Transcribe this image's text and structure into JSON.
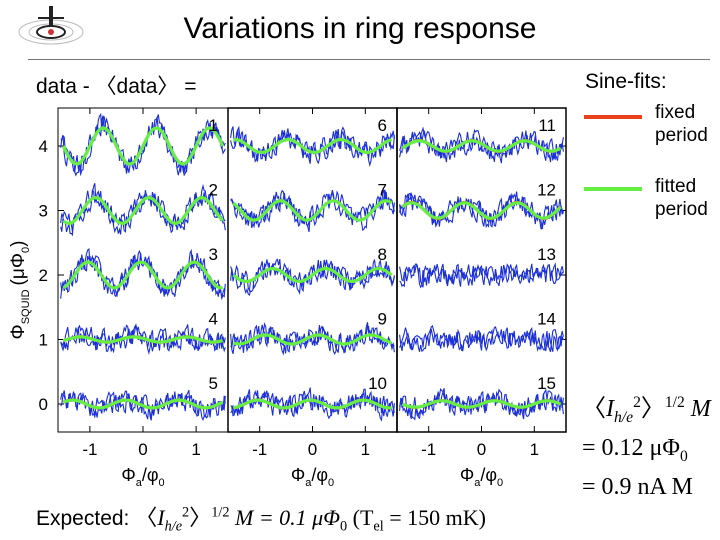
{
  "title": "Variations in ring response",
  "lhs_label": "data - 〈data〉 =",
  "legend": {
    "heading": "Sine-fits:",
    "items": [
      {
        "label_1": "fixed",
        "label_2": "period",
        "color": "#e8411b"
      },
      {
        "label_1": "fitted",
        "label_2": "period",
        "color": "#66ee44"
      }
    ]
  },
  "expected": {
    "prefix": "Expected: ",
    "bracket_l": "〈",
    "I": "I",
    "sub": "h/e",
    "sup2": "2",
    "bracket_r": "〉",
    "sup_half": "1/2",
    "mid": " M = 0.1 μΦ",
    "zero": "0",
    "temp_open": "   (T",
    "temp_sub": "el",
    "temp_close": " = 150 mK)"
  },
  "result": {
    "bracket_l": "〈",
    "I": "I",
    "sub": "h/e",
    "sup2": "2",
    "bracket_r": "〉",
    "sup_half": "1/2",
    "M": " M",
    "line2_prefix": "= 0.12 μΦ",
    "line2_sub": "0",
    "line3": "= 0.9 nA M"
  },
  "colors": {
    "data": "#1a2fd6",
    "fixed": "#e8411b",
    "fitted": "#66ee44"
  },
  "chart_data": {
    "type": "line",
    "panels": 3,
    "ylabel": "Φ_SQUID (μΦ0)",
    "ylabel_main": "Φ",
    "ylabel_sub": "SQUID",
    "ylabel_unit": "(μΦ",
    "ylabel_unit_sub": "0",
    "ylabel_close": ")",
    "xlabel_main": "Φ",
    "xlabel_sub": "a",
    "xlabel_slash": "/φ",
    "xlabel_sub2": "0",
    "xlim": [
      -1.6,
      1.6
    ],
    "ylim": [
      -0.4,
      4.4
    ],
    "xticks": [
      -1,
      0,
      1
    ],
    "xtick_labels": [
      "-1",
      "0",
      "1"
    ],
    "yticks": [
      0,
      1,
      2,
      3,
      4
    ],
    "ytick_labels": [
      "0",
      "1",
      "2",
      "3",
      "4"
    ],
    "curves": [
      {
        "id": "1",
        "panel": 0,
        "offset": 4,
        "amplitude": 0.28,
        "has_fixed_fit": false
      },
      {
        "id": "2",
        "panel": 0,
        "offset": 3,
        "amplitude": 0.2,
        "has_fixed_fit": false
      },
      {
        "id": "3",
        "panel": 0,
        "offset": 2,
        "amplitude": 0.2,
        "has_fixed_fit": false
      },
      {
        "id": "4",
        "panel": 0,
        "offset": 1,
        "amplitude": 0.04,
        "has_fixed_fit": true
      },
      {
        "id": "5",
        "panel": 0,
        "offset": 0,
        "amplitude": 0.06,
        "has_fixed_fit": true
      },
      {
        "id": "6",
        "panel": 1,
        "offset": 4,
        "amplitude": 0.1,
        "has_fixed_fit": false
      },
      {
        "id": "7",
        "panel": 1,
        "offset": 3,
        "amplitude": 0.15,
        "has_fixed_fit": false
      },
      {
        "id": "8",
        "panel": 1,
        "offset": 2,
        "amplitude": 0.1,
        "has_fixed_fit": false
      },
      {
        "id": "9",
        "panel": 1,
        "offset": 1,
        "amplitude": 0.07,
        "has_fixed_fit": false
      },
      {
        "id": "10",
        "panel": 1,
        "offset": 0,
        "amplitude": 0.06,
        "has_fixed_fit": true
      },
      {
        "id": "11",
        "panel": 2,
        "offset": 4,
        "amplitude": 0.08,
        "has_fixed_fit": true
      },
      {
        "id": "12",
        "panel": 2,
        "offset": 3,
        "amplitude": 0.12,
        "has_fixed_fit": true
      },
      {
        "id": "13",
        "panel": 2,
        "offset": 2,
        "amplitude": 0.0,
        "has_fixed_fit": false
      },
      {
        "id": "14",
        "panel": 2,
        "offset": 1,
        "amplitude": 0.0,
        "has_fixed_fit": false
      },
      {
        "id": "15",
        "panel": 2,
        "offset": 0,
        "amplitude": 0.05,
        "has_fixed_fit": true
      }
    ]
  }
}
